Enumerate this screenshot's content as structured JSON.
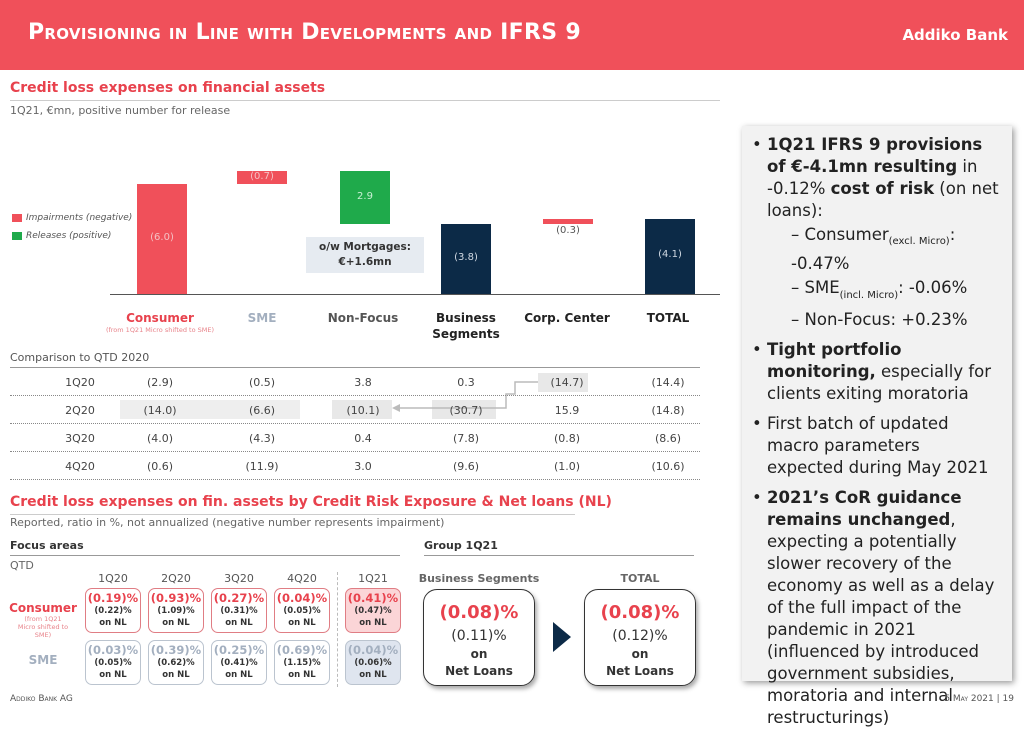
{
  "header": {
    "title": "Provisioning in Line with Developments and IFRS 9",
    "logo": "Addiko Bank"
  },
  "section1": {
    "title": "Credit loss expenses on financial assets",
    "subtitle": "1Q21, €mn, positive number for release"
  },
  "legend": {
    "impairments": "Impairments (negative)",
    "releases": "Releases (positive)"
  },
  "colors": {
    "impairment": "#f0505a",
    "release": "#1faa4b",
    "total": "#0c2a47"
  },
  "chart_data": {
    "type": "bar",
    "subtype": "waterfall",
    "categories": [
      "Consumer",
      "SME",
      "Non-Focus",
      "Business Segments",
      "Corp. Center",
      "TOTAL"
    ],
    "category_note": "(from 1Q21 Micro shifted to SME)",
    "values": [
      -6.0,
      -0.7,
      2.9,
      -3.8,
      -0.3,
      -4.1
    ],
    "labels": [
      "(6.0)",
      "(0.7)",
      "2.9",
      "(3.8)",
      "(0.3)",
      "(4.1)"
    ],
    "kinds": [
      "impairment",
      "impairment",
      "release",
      "total",
      "impairment",
      "total"
    ],
    "annotation": {
      "line1": "o/w Mortgages:",
      "line2": "€+1.6mn"
    }
  },
  "comparison": {
    "title": "Comparison to QTD 2020",
    "rows": [
      {
        "label": "1Q20",
        "values": [
          "(2.9)",
          "(0.5)",
          "3.8",
          "0.3",
          "(14.7)",
          "(14.4)"
        ]
      },
      {
        "label": "2Q20",
        "values": [
          "(14.0)",
          "(6.6)",
          "(10.1)",
          "(30.7)",
          "15.9",
          "(14.8)"
        ]
      },
      {
        "label": "3Q20",
        "values": [
          "(4.0)",
          "(4.3)",
          "0.4",
          "(7.8)",
          "(0.8)",
          "(8.6)"
        ]
      },
      {
        "label": "4Q20",
        "values": [
          "(0.6)",
          "(11.9)",
          "3.0",
          "(9.6)",
          "(1.0)",
          "(10.6)"
        ]
      }
    ]
  },
  "section2": {
    "title": "Credit loss expenses on fin. assets by Credit Risk Exposure & Net loans (NL)",
    "subtitle": "Reported, ratio in %, not annualized (negative number represents impairment)"
  },
  "focus": {
    "title": "Focus areas",
    "qtd": "QTD",
    "quarters": [
      "1Q20",
      "2Q20",
      "3Q20",
      "4Q20",
      "1Q21"
    ],
    "consumer": {
      "label": "Consumer",
      "note": "(from 1Q21 Micro shifted to SME)",
      "cre": [
        "(0.19)%",
        "(0.93)%",
        "(0.27)%",
        "(0.04)%",
        "(0.41)%"
      ],
      "nl": [
        "(0.22)%",
        "(1.09)%",
        "(0.31)%",
        "(0.05)%",
        "(0.47)%"
      ]
    },
    "sme": {
      "label": "SME",
      "cre": [
        "(0.03)%",
        "(0.39)%",
        "(0.25)%",
        "(0.69)%",
        "(0.04)%"
      ],
      "nl": [
        "(0.05)%",
        "(0.62)%",
        "(0.41)%",
        "(1.15)%",
        "(0.06)%"
      ]
    },
    "on_nl": "on NL"
  },
  "group": {
    "title": "Group 1Q21",
    "boxes": [
      {
        "label": "Business Segments",
        "cre": "(0.08)%",
        "nl": "(0.11)%",
        "on": "on",
        "net": "Net Loans"
      },
      {
        "label": "TOTAL",
        "cre": "(0.08)%",
        "nl": "(0.12)%",
        "on": "on",
        "net": "Net Loans"
      }
    ]
  },
  "panel": {
    "b1a": "1Q21 IFRS 9 provisions of €-4.1mn resulting",
    "b1b": " in -0.12% ",
    "b1c": "cost of risk",
    "b1d": " (on net loans):",
    "d1": "Consumer",
    "d1s": "(excl. Micro)",
    "d1v": ": -0.47%",
    "d2": "SME",
    "d2s": "(incl. Micro)",
    "d2v": ": -0.06%",
    "d3": "Non-Focus: +0.23%",
    "b2a": "Tight portfolio monitoring,",
    "b2b": " especially for clients exiting moratoria",
    "b3": "First batch of updated macro parameters expected during May 2021",
    "b4a": "2021’s CoR guidance remains unchanged",
    "b4b": ", expecting a potentially slower recovery of the economy as well as a delay of the full impact of the pandemic in 2021 (influenced by introduced government subsidies, moratoria and internal restructurings)"
  },
  "footer": {
    "company": "Addiko Bank AG",
    "date": "5 May 2021",
    "sep": "|",
    "page": "19"
  }
}
